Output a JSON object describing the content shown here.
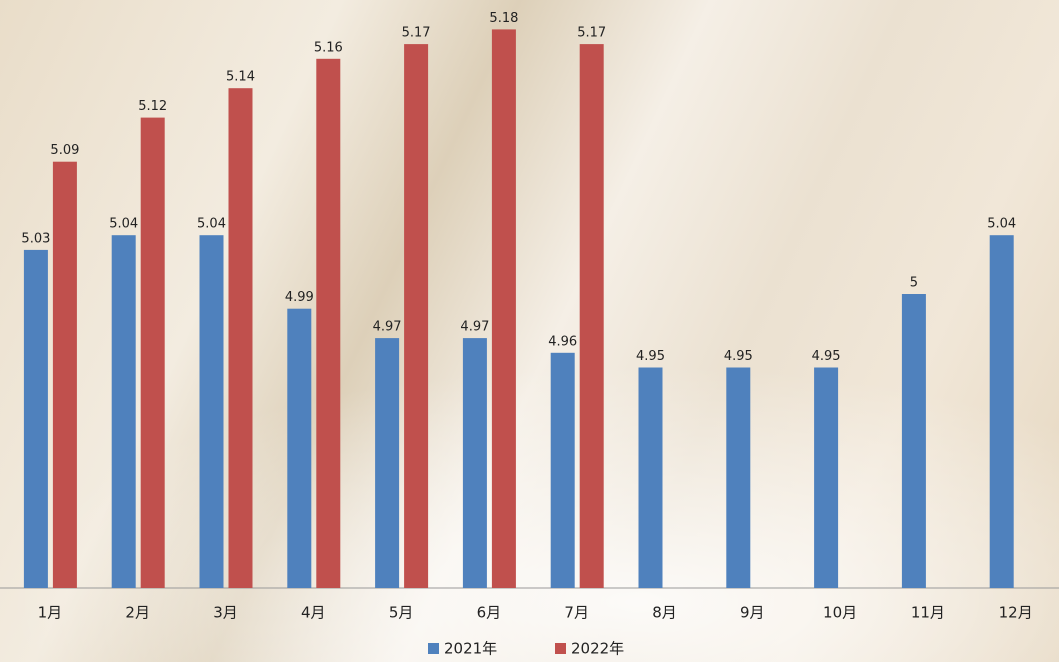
{
  "chart_data": {
    "type": "bar",
    "categories": [
      "1月",
      "2月",
      "3月",
      "4月",
      "5月",
      "6月",
      "7月",
      "8月",
      "9月",
      "10月",
      "11月",
      "12月"
    ],
    "series": [
      {
        "name": "2021年",
        "color": "#4f81bd",
        "values": [
          5.03,
          5.04,
          5.04,
          4.99,
          4.97,
          4.97,
          4.96,
          4.95,
          4.95,
          4.95,
          5,
          5.04
        ]
      },
      {
        "name": "2022年",
        "color": "#c0504d",
        "values": [
          5.09,
          5.12,
          5.14,
          5.16,
          5.17,
          5.18,
          5.17,
          null,
          null,
          null,
          null,
          null
        ]
      }
    ],
    "ylim": [
      4.8,
      5.2
    ],
    "legend": "bottom"
  }
}
